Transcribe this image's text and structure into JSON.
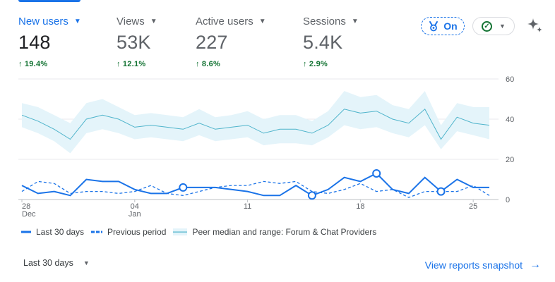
{
  "metrics": [
    {
      "label": "New users",
      "value": "148",
      "change": "19.4%"
    },
    {
      "label": "Views",
      "value": "53K",
      "change": "12.1%"
    },
    {
      "label": "Active users",
      "value": "227",
      "change": "8.6%"
    },
    {
      "label": "Sessions",
      "value": "5.4K",
      "change": "2.9%"
    }
  ],
  "toolbar": {
    "on_label": "On"
  },
  "chart_data": {
    "type": "line",
    "x_tick_labels": [
      "28",
      "Dec",
      "04",
      "Jan",
      "11",
      "18",
      "25"
    ],
    "y_ticks": [
      0,
      20,
      40,
      60
    ],
    "ylim": [
      0,
      60
    ],
    "series": [
      {
        "name": "Last 30 days",
        "values": [
          7,
          3,
          4,
          2,
          10,
          9,
          9,
          5,
          3,
          3,
          6,
          6,
          6,
          5,
          4,
          2,
          2,
          7,
          2,
          5,
          11,
          9,
          13,
          5,
          3,
          11,
          4,
          10,
          6,
          6
        ]
      },
      {
        "name": "Previous period",
        "values": [
          4,
          9,
          8,
          3,
          4,
          4,
          3,
          4,
          7,
          3,
          2,
          4,
          6,
          7,
          7,
          9,
          8,
          9,
          4,
          3,
          5,
          8,
          4,
          5,
          1,
          4,
          4,
          4,
          7,
          2
        ]
      },
      {
        "name": "Peer median",
        "values": [
          42,
          39,
          35,
          30,
          40,
          42,
          40,
          36,
          37,
          36,
          35,
          38,
          35,
          36,
          37,
          33,
          35,
          35,
          33,
          37,
          45,
          43,
          44,
          40,
          38,
          45,
          30,
          41,
          38,
          37
        ]
      },
      {
        "name": "Peer range upper",
        "values": [
          48,
          46,
          42,
          38,
          48,
          50,
          46,
          42,
          43,
          42,
          41,
          45,
          41,
          42,
          44,
          40,
          42,
          42,
          39,
          44,
          54,
          51,
          52,
          47,
          45,
          54,
          37,
          48,
          46,
          46
        ]
      },
      {
        "name": "Peer range lower",
        "values": [
          36,
          33,
          29,
          23,
          33,
          35,
          33,
          30,
          31,
          30,
          29,
          32,
          29,
          30,
          31,
          27,
          28,
          28,
          27,
          31,
          37,
          35,
          36,
          33,
          31,
          37,
          25,
          34,
          32,
          30
        ]
      }
    ],
    "markers_on": "Last 30 days",
    "marker_indices": [
      10,
      18,
      22,
      26
    ]
  },
  "legend": {
    "last30": "Last 30 days",
    "previous": "Previous period",
    "peer": "Peer median and range: Forum & Chat Providers"
  },
  "footer": {
    "range_label": "Last 30 days",
    "snapshot_link": "View reports snapshot"
  },
  "colors": {
    "accent": "#1a73e8",
    "positive": "#137333",
    "peer_line": "#4fb4cb",
    "peer_band": "#e4f4fa"
  }
}
